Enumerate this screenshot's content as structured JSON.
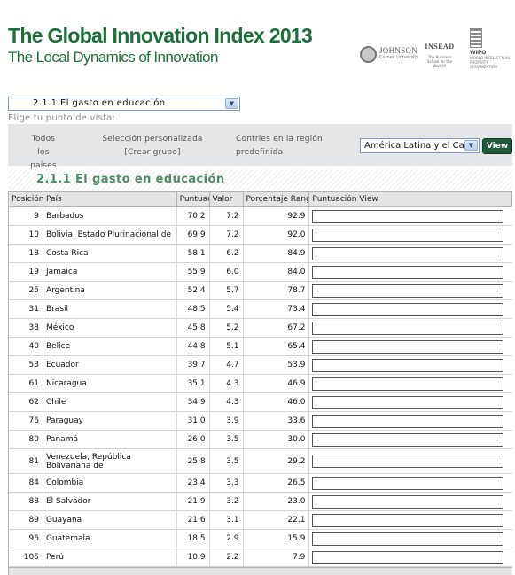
{
  "header": {
    "title": "The Global Innovation Index 2013",
    "subtitle": "The Local Dynamics of Innovation",
    "logos": [
      {
        "name": "JOHNSON",
        "sub": "Cornell University"
      },
      {
        "name": "INSEAD",
        "sub": "The Business School for the World®"
      },
      {
        "name": "WIPO",
        "sub": "WORLD INTELLECTUAL PROPERTY ORGANIZATION"
      }
    ]
  },
  "indicator_select": {
    "value": "2.1.1 El gasto en educación"
  },
  "viewpoint_label": "Elige tu punto de vista:",
  "filters": {
    "all_countries": "Todos los países",
    "custom_selection": "Selección personalizada [Crear grupo]",
    "region_option": "Contries en la región predefinida",
    "region_select": "América Latina y el Ca",
    "view_button": "View"
  },
  "section_title": "2.1.1 El gasto en educación",
  "table": {
    "columns": [
      "Posición",
      "País",
      "Puntuación",
      "Valor",
      "Porcentaje Rango",
      "Puntuación View"
    ],
    "rows": [
      {
        "pos": "9",
        "country": "Barbados",
        "score": "70.2",
        "value": "7.2",
        "pct": "92.9"
      },
      {
        "pos": "10",
        "country": "Bolivia, Estado Plurinacional de",
        "score": "69.9",
        "value": "7.2",
        "pct": "92.0"
      },
      {
        "pos": "18",
        "country": "Costa Rica",
        "score": "58.1",
        "value": "6.2",
        "pct": "84.9"
      },
      {
        "pos": "19",
        "country": "Jamaica",
        "score": "55.9",
        "value": "6.0",
        "pct": "84.0"
      },
      {
        "pos": "25",
        "country": "Argentina",
        "score": "52.4",
        "value": "5.7",
        "pct": "78.7"
      },
      {
        "pos": "31",
        "country": "Brasil",
        "score": "48.5",
        "value": "5.4",
        "pct": "73.4"
      },
      {
        "pos": "38",
        "country": "México",
        "score": "45.8",
        "value": "5.2",
        "pct": "67.2"
      },
      {
        "pos": "40",
        "country": "Belice",
        "score": "44.8",
        "value": "5.1",
        "pct": "65.4"
      },
      {
        "pos": "53",
        "country": "Ecuador",
        "score": "39.7",
        "value": "4.7",
        "pct": "53.9"
      },
      {
        "pos": "61",
        "country": "Nicaragua",
        "score": "35.1",
        "value": "4.3",
        "pct": "46.9"
      },
      {
        "pos": "62",
        "country": "Chile",
        "score": "34.9",
        "value": "4.3",
        "pct": "46.0"
      },
      {
        "pos": "76",
        "country": "Paraguay",
        "score": "31.0",
        "value": "3.9",
        "pct": "33.6"
      },
      {
        "pos": "80",
        "country": "Panamá",
        "score": "26.0",
        "value": "3.5",
        "pct": "30.0"
      },
      {
        "pos": "81",
        "country": "Venezuela, República Bolivariana de",
        "score": "25.8",
        "value": "3.5",
        "pct": "29.2",
        "tall": true
      },
      {
        "pos": "84",
        "country": "Colombia",
        "score": "23.4",
        "value": "3.3",
        "pct": "26.5"
      },
      {
        "pos": "88",
        "country": "El Salvador",
        "score": "21.9",
        "value": "3.2",
        "pct": "23.0"
      },
      {
        "pos": "89",
        "country": "Guayana",
        "score": "21.6",
        "value": "3.1",
        "pct": "22.1"
      },
      {
        "pos": "96",
        "country": "Guatemala",
        "score": "18.5",
        "value": "2.9",
        "pct": "15.9"
      },
      {
        "pos": "105",
        "country": "Perú",
        "score": "10.9",
        "value": "2.2",
        "pct": "7.9"
      }
    ]
  }
}
